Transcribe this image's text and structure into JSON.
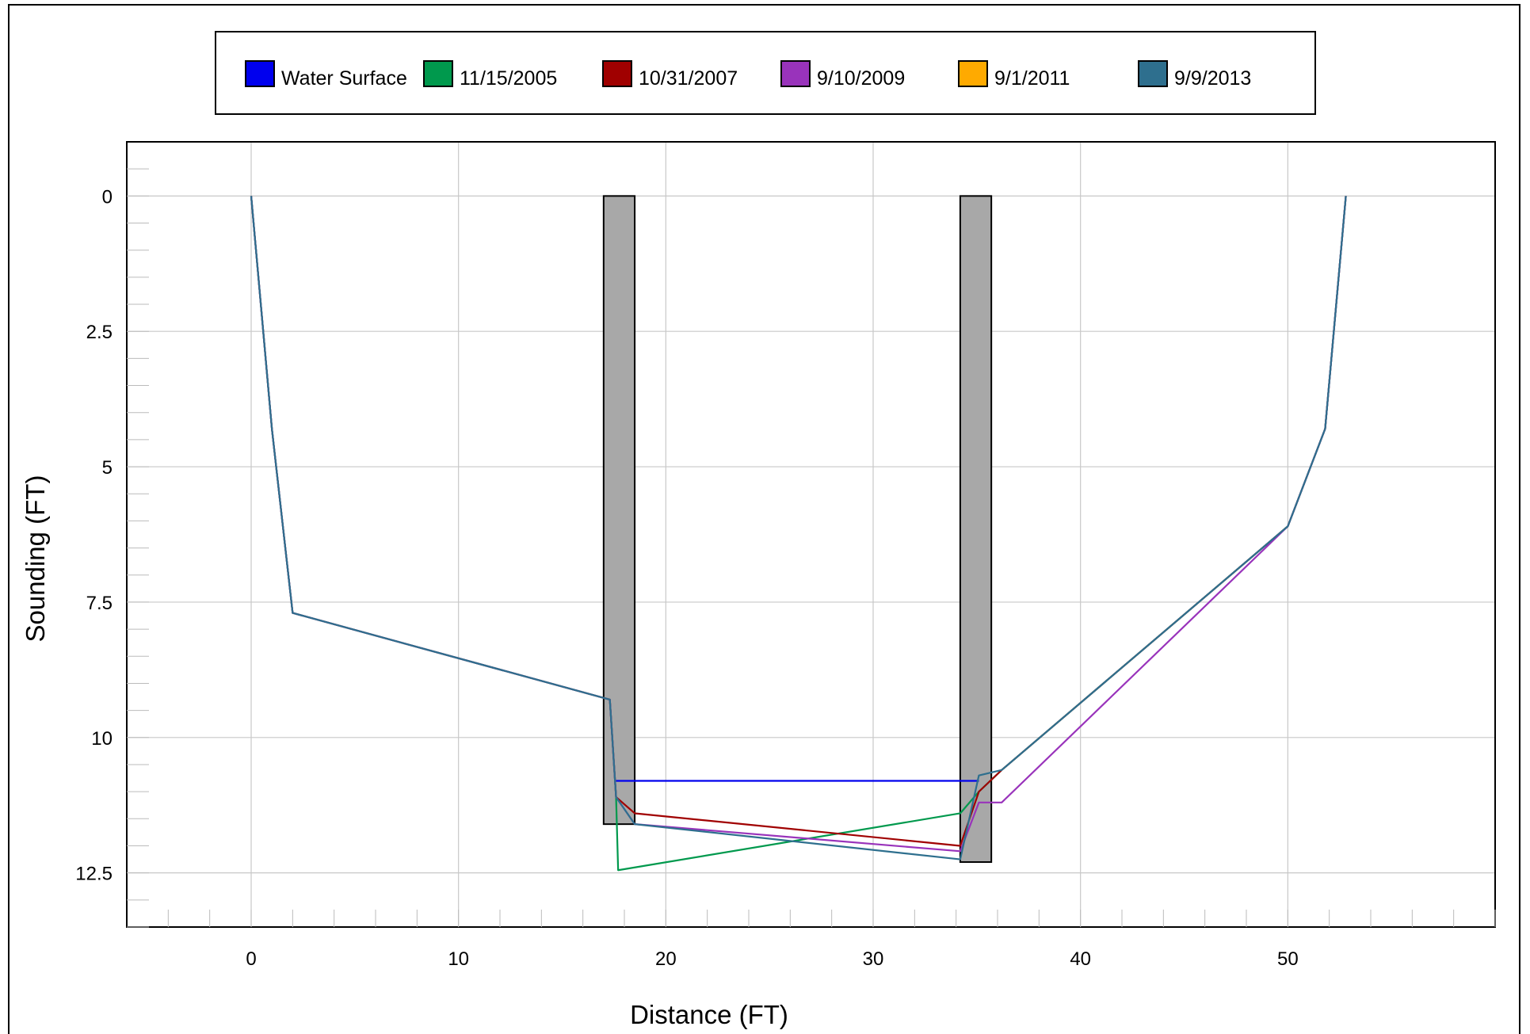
{
  "chart_data": {
    "type": "line",
    "title": "",
    "xlabel": "Distance (FT)",
    "ylabel": "Sounding (FT)",
    "xlim": [
      -6,
      60
    ],
    "ylim": [
      -1,
      13.5
    ],
    "y_inverted": true,
    "grid": true,
    "legend_position": "top",
    "x_ticks": [
      0,
      10,
      20,
      30,
      40,
      50
    ],
    "y_ticks": [
      0,
      2.5,
      5,
      7.5,
      10,
      12.5
    ],
    "x_tick_labels": [
      "0",
      "10",
      "20",
      "30",
      "40",
      "50"
    ],
    "y_tick_labels": [
      "0",
      "2.5",
      "5",
      "7.5",
      "10",
      "12.5"
    ],
    "series": [
      {
        "name": "Water Surface",
        "color": "#0000ee",
        "x": [
          17.6,
          35.1
        ],
        "y": [
          10.8,
          10.8
        ]
      },
      {
        "name": "11/15/2005",
        "color": "#00994d",
        "x": [
          0,
          1,
          2,
          17.3,
          17.6,
          17.7,
          34.2,
          35.1,
          36.2,
          50,
          51.8,
          52.8
        ],
        "y": [
          0,
          4.3,
          7.7,
          9.3,
          11.1,
          12.45,
          11.4,
          11.0,
          10.6,
          6.1,
          4.3,
          0
        ]
      },
      {
        "name": "10/31/2007",
        "color": "#a00000",
        "x": [
          0,
          1,
          2,
          17.3,
          17.6,
          18.5,
          34.2,
          35.1,
          36.2,
          50,
          51.8,
          52.8
        ],
        "y": [
          0,
          4.3,
          7.7,
          9.3,
          11.1,
          11.4,
          12.0,
          11.0,
          10.6,
          6.1,
          4.3,
          0
        ]
      },
      {
        "name": "9/10/2009",
        "color": "#9933bb",
        "x": [
          0,
          1,
          2,
          17.3,
          17.6,
          18.5,
          34.2,
          35.1,
          36.2,
          50,
          51.8,
          52.8
        ],
        "y": [
          0,
          4.3,
          7.7,
          9.3,
          11.1,
          11.6,
          12.1,
          11.2,
          11.2,
          6.1,
          4.3,
          0
        ]
      },
      {
        "name": "9/1/2011",
        "color": "#ffaa00",
        "x": [],
        "y": []
      },
      {
        "name": "9/9/2013",
        "color": "#2e6f8e",
        "x": [
          0,
          1,
          2,
          17.3,
          17.6,
          18.5,
          34.2,
          35.1,
          36.2,
          50,
          51.8,
          52.8
        ],
        "y": [
          0,
          4.3,
          7.7,
          9.3,
          11.1,
          11.6,
          12.25,
          10.7,
          10.6,
          6.1,
          4.3,
          0
        ]
      }
    ],
    "piers": [
      {
        "x0": 17.0,
        "x1": 18.5,
        "y0": 0,
        "y1": 11.6
      },
      {
        "x0": 34.2,
        "x1": 35.7,
        "y0": 0,
        "y1": 12.3
      }
    ]
  },
  "colors": {
    "pier_fill": "#a8a8a8",
    "grid": "#c8c8c8"
  }
}
